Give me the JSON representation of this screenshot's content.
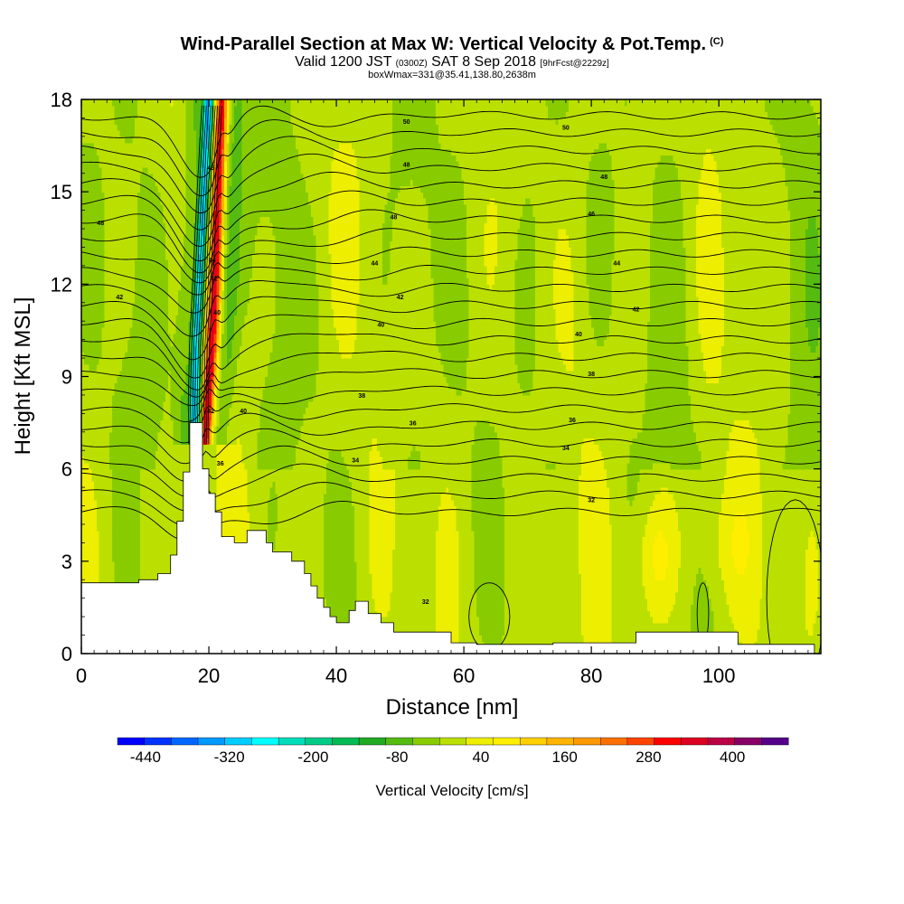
{
  "header": {
    "title": "Wind-Parallel Section at Max W: Vertical Velocity & Pot.Temp.",
    "title_suffix": "(C)",
    "subtitle_valid": "Valid 1200 JST",
    "subtitle_utc": "(0300Z)",
    "subtitle_date": "SAT 8 Sep 2018",
    "subtitle_fcst": "[9hrFcst@2229z]",
    "box_line": "boxWmax=331@35.41,138.80,2638m"
  },
  "chart_data": {
    "type": "heatmap",
    "xlabel": "Distance [nm]",
    "ylabel": "Height [Kft MSL]",
    "xlim": [
      0,
      116
    ],
    "ylim": [
      0,
      18
    ],
    "x_ticks": [
      0,
      20,
      40,
      60,
      80,
      100
    ],
    "y_ticks": [
      0,
      3,
      6,
      9,
      12,
      15,
      18
    ],
    "colorbar": {
      "label": "Vertical Velocity [cm/s]",
      "tick_labels": [
        "-440",
        "-320",
        "-200",
        "-80",
        "40",
        "160",
        "280",
        "400"
      ],
      "tick_values": [
        -440,
        -320,
        -200,
        -80,
        40,
        160,
        280,
        400
      ],
      "range": [
        -480,
        480
      ],
      "step": 40,
      "colors": [
        "#0000ff",
        "#0033ff",
        "#0066ff",
        "#0099ff",
        "#00ccff",
        "#00ffff",
        "#00ddbb",
        "#00cc88",
        "#00bb55",
        "#22aa22",
        "#55bb11",
        "#88cc00",
        "#bbe000",
        "#eeee00",
        "#ffee00",
        "#ffd000",
        "#ffb400",
        "#ff9900",
        "#ff7000",
        "#ff4400",
        "#ff0000",
        "#dd0022",
        "#bb0044",
        "#880066",
        "#550088"
      ]
    },
    "terrain_profile": [
      [
        0,
        2.3
      ],
      [
        9,
        2.3
      ],
      [
        9,
        2.4
      ],
      [
        12,
        2.4
      ],
      [
        12,
        2.6
      ],
      [
        14,
        2.6
      ],
      [
        14,
        3.2
      ],
      [
        15,
        3.2
      ],
      [
        15,
        4.3
      ],
      [
        16,
        4.3
      ],
      [
        16,
        5.9
      ],
      [
        17,
        5.9
      ],
      [
        17,
        7.5
      ],
      [
        19,
        7.5
      ],
      [
        19,
        6.0
      ],
      [
        20,
        6.0
      ],
      [
        20,
        5.2
      ],
      [
        21,
        5.2
      ],
      [
        21,
        4.6
      ],
      [
        22,
        4.6
      ],
      [
        22,
        3.8
      ],
      [
        24,
        3.8
      ],
      [
        24,
        3.6
      ],
      [
        26,
        3.6
      ],
      [
        26,
        4.0
      ],
      [
        29,
        4.0
      ],
      [
        29,
        3.6
      ],
      [
        30,
        3.6
      ],
      [
        30,
        3.3
      ],
      [
        33,
        3.3
      ],
      [
        33,
        3.0
      ],
      [
        35,
        3.0
      ],
      [
        35,
        2.6
      ],
      [
        36,
        2.6
      ],
      [
        36,
        2.2
      ],
      [
        37,
        2.2
      ],
      [
        37,
        1.8
      ],
      [
        38,
        1.8
      ],
      [
        38,
        1.5
      ],
      [
        39,
        1.5
      ],
      [
        39,
        1.2
      ],
      [
        40,
        1.2
      ],
      [
        40,
        1.0
      ],
      [
        42,
        1.0
      ],
      [
        42,
        1.4
      ],
      [
        43,
        1.4
      ],
      [
        43,
        1.7
      ],
      [
        45,
        1.7
      ],
      [
        45,
        1.3
      ],
      [
        47,
        1.3
      ],
      [
        47,
        1.0
      ],
      [
        49,
        1.0
      ],
      [
        49,
        0.7
      ],
      [
        58,
        0.7
      ],
      [
        58,
        0.35
      ],
      [
        62,
        0.35
      ],
      [
        62,
        0.3
      ],
      [
        74,
        0.3
      ],
      [
        74,
        0.35
      ],
      [
        87,
        0.35
      ],
      [
        87,
        0.7
      ],
      [
        103,
        0.7
      ],
      [
        103,
        0.3
      ],
      [
        115,
        0.3
      ],
      [
        115,
        0
      ]
    ],
    "updraft_axis": [
      [
        22.0,
        18
      ],
      [
        21.5,
        15
      ],
      [
        21.0,
        12
      ],
      [
        20.5,
        10
      ],
      [
        19.8,
        8
      ],
      [
        19.3,
        6.8
      ]
    ],
    "downdraft_axis": [
      [
        20.0,
        18
      ],
      [
        19.2,
        15
      ],
      [
        18.5,
        12
      ],
      [
        18.0,
        10
      ],
      [
        17.8,
        8
      ],
      [
        17.9,
        7.5
      ]
    ],
    "isentrope_labels": [
      {
        "text": "50",
        "x": 51,
        "y": 17.3
      },
      {
        "text": "50",
        "x": 76,
        "y": 17.1
      },
      {
        "text": "48",
        "x": 51,
        "y": 15.9
      },
      {
        "text": "48",
        "x": 82,
        "y": 15.5
      },
      {
        "text": "48",
        "x": 3,
        "y": 14.0
      },
      {
        "text": "48",
        "x": 49,
        "y": 14.2
      },
      {
        "text": "46",
        "x": 80,
        "y": 14.3
      },
      {
        "text": "44",
        "x": 46,
        "y": 12.7
      },
      {
        "text": "44",
        "x": 84,
        "y": 12.7
      },
      {
        "text": "42",
        "x": 6,
        "y": 11.6
      },
      {
        "text": "42",
        "x": 50,
        "y": 11.6
      },
      {
        "text": "42",
        "x": 87,
        "y": 11.2
      },
      {
        "text": "40",
        "x": 47,
        "y": 10.7
      },
      {
        "text": "40",
        "x": 78,
        "y": 10.4
      },
      {
        "text": "38",
        "x": 80,
        "y": 9.1
      },
      {
        "text": "38",
        "x": 44,
        "y": 8.4
      },
      {
        "text": "36",
        "x": 52,
        "y": 7.5
      },
      {
        "text": "36",
        "x": 77,
        "y": 7.6
      },
      {
        "text": "34",
        "x": 43,
        "y": 6.3
      },
      {
        "text": "34",
        "x": 76,
        "y": 6.7
      },
      {
        "text": "32",
        "x": 80,
        "y": 5.0
      },
      {
        "text": "32",
        "x": 54,
        "y": 1.7
      },
      {
        "text": "46",
        "x": 20.3,
        "y": 15.8
      },
      {
        "text": "44",
        "x": 20.5,
        "y": 12.8
      },
      {
        "text": "42",
        "x": 20.8,
        "y": 12.2
      },
      {
        "text": "40",
        "x": 21.3,
        "y": 11.1
      },
      {
        "text": "42",
        "x": 20.3,
        "y": 7.9
      },
      {
        "text": "40",
        "x": 25.4,
        "y": 7.9
      },
      {
        "text": "36",
        "x": 21.8,
        "y": 6.2
      }
    ]
  }
}
